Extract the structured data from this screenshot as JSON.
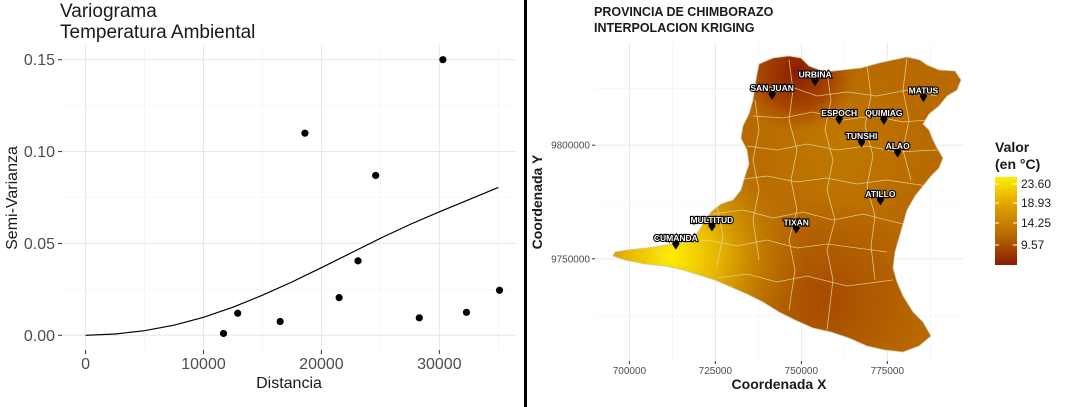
{
  "chart_data": [
    {
      "type": "scatter",
      "title": "Variograma",
      "subtitle": "Temperatura Ambiental",
      "xlabel": "Distancia",
      "ylabel": "Semi-Varianza",
      "xlim": [
        -2000,
        36500
      ],
      "ylim": [
        -0.008,
        0.158
      ],
      "xticks": [
        0,
        10000,
        20000,
        30000
      ],
      "yticks": [
        0.0,
        0.05,
        0.1,
        0.15
      ],
      "ytick_labels": [
        "0.00",
        "0.05",
        "0.10",
        "0.15"
      ],
      "grid": true,
      "series": [
        {
          "kind": "points",
          "x": [
            11700,
            12900,
            16500,
            18600,
            21500,
            23100,
            24600,
            28300,
            30300,
            32300,
            35100
          ],
          "y": [
            0.001,
            0.012,
            0.0075,
            0.11,
            0.0205,
            0.0405,
            0.087,
            0.0095,
            0.15,
            0.0125,
            0.0245
          ]
        },
        {
          "kind": "model-line",
          "x": [
            0,
            2500,
            5000,
            7500,
            10000,
            12500,
            15000,
            17500,
            20000,
            22500,
            25000,
            27500,
            30000,
            32500,
            35000
          ],
          "y": [
            0.0,
            0.0007,
            0.0025,
            0.0055,
            0.0098,
            0.0153,
            0.0218,
            0.029,
            0.0368,
            0.0448,
            0.0528,
            0.0603,
            0.0672,
            0.0738,
            0.0805
          ]
        }
      ]
    },
    {
      "type": "heatmap",
      "title": "PROVINCIA DE CHIMBORAZO",
      "subtitle": "INTERPOLACION KRIGING",
      "xlabel": "Coordenada X",
      "ylabel": "Coordenada Y",
      "xlim": [
        690000,
        797000
      ],
      "ylim": [
        9705000,
        9845000
      ],
      "xticks": [
        700000,
        725000,
        750000,
        775000
      ],
      "yticks": [
        9750000,
        9800000
      ],
      "grid": true,
      "legend": {
        "title_line1": "Valor",
        "title_line2": "(en °C)",
        "placement": "right",
        "labels": [
          "23.60",
          "18.93",
          "14.25",
          "9.57"
        ],
        "colors": [
          "#ffee00",
          "#e0a000",
          "#b86a00",
          "#8a1a00"
        ]
      },
      "towns": [
        {
          "name": "URBINA",
          "x": 754000,
          "y": 9828000
        },
        {
          "name": "SAN JUAN",
          "x": 741500,
          "y": 9822000
        },
        {
          "name": "MATUS",
          "x": 785500,
          "y": 9821000
        },
        {
          "name": "ESPOCH",
          "x": 761000,
          "y": 9811000
        },
        {
          "name": "QUIMIAG",
          "x": 774000,
          "y": 9811000
        },
        {
          "name": "TUNSHI",
          "x": 767500,
          "y": 9801000
        },
        {
          "name": "ALAO",
          "x": 778000,
          "y": 9796500
        },
        {
          "name": "ATILLO",
          "x": 773000,
          "y": 9775500
        },
        {
          "name": "MULTITUD",
          "x": 724000,
          "y": 9764000
        },
        {
          "name": "TIXAN",
          "x": 748500,
          "y": 9763000
        },
        {
          "name": "CUMANDA",
          "x": 713500,
          "y": 9756000
        }
      ]
    }
  ]
}
